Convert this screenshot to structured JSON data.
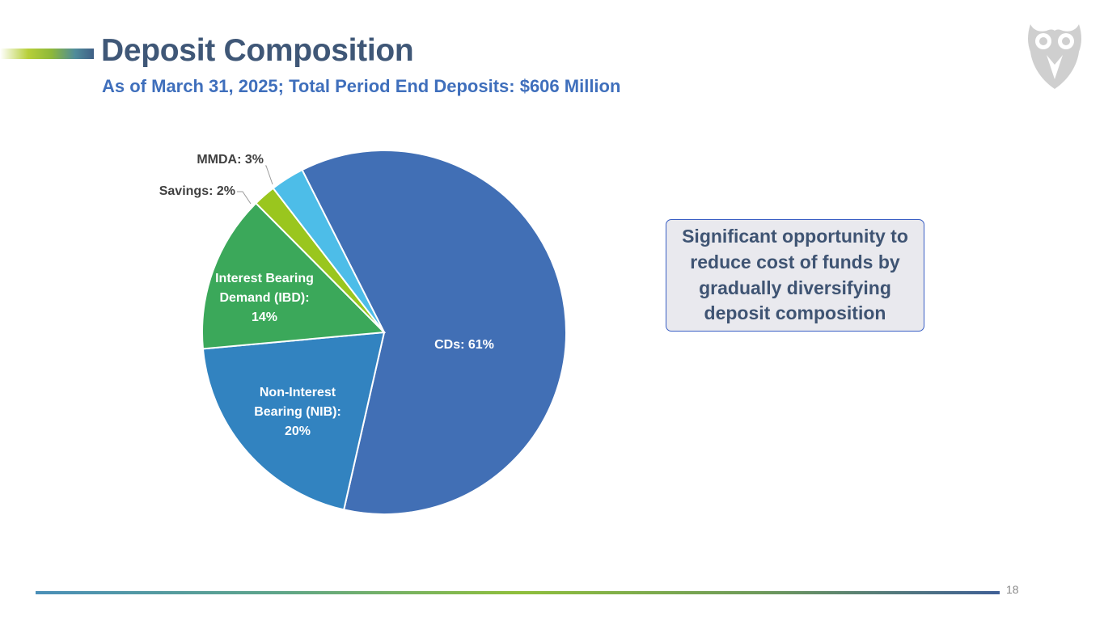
{
  "slide": {
    "title": "Deposit Composition",
    "subtitle": "As of March 31, 2025; Total Period End Deposits: $606 Million",
    "callout": "Significant opportunity to reduce cost of funds by gradually diversifying deposit composition",
    "page_number": "18",
    "logo_icon": "owl-logo-icon"
  },
  "colors": {
    "title": "#3f5777",
    "subtitle": "#3f6fbc",
    "callout_border": "#3a5fc4",
    "callout_fill": "#e9e9ee"
  },
  "chart_data": {
    "type": "pie",
    "title": "",
    "slices": [
      {
        "name": "CDs",
        "label_lines": [
          "CDs: 61%"
        ],
        "value": 61,
        "color": "#416fb5",
        "label_color": "#ffffff"
      },
      {
        "name": "Non-Interest Bearing (NIB)",
        "label_lines": [
          "Non-Interest",
          "Bearing (NIB):",
          "20%"
        ],
        "value": 20,
        "color": "#3283c0",
        "label_color": "#ffffff"
      },
      {
        "name": "Interest Bearing Demand (IBD)",
        "label_lines": [
          "Interest Bearing",
          "Demand (IBD):",
          "14%"
        ],
        "value": 14,
        "color": "#3ba85a",
        "label_color": "#ffffff"
      },
      {
        "name": "Savings",
        "label_lines": [
          "Savings: 2%"
        ],
        "value": 2,
        "color": "#9ac61e",
        "label_color": "#404040",
        "outside": true
      },
      {
        "name": "MMDA",
        "label_lines": [
          "MMDA: 3%"
        ],
        "value": 3,
        "color": "#4dbde8",
        "label_color": "#404040",
        "outside": true
      }
    ]
  }
}
